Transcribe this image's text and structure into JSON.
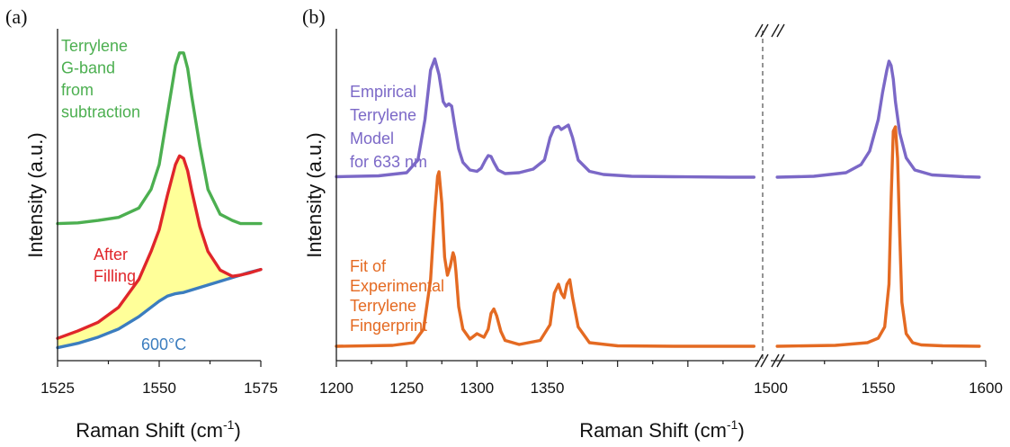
{
  "figure": {
    "panel_a": "(a)",
    "panel_b": "(b)",
    "xlabel_a": "Raman Shift (cm",
    "xlabel_b": "Raman Shift (cm",
    "xlabel_unit_sup": "-1",
    "xlabel_close": ")",
    "ylabel_a": "Intensity (a.u.)",
    "ylabel_b": "Intensity (a.u.)"
  },
  "colors": {
    "green": "#4caf50",
    "red": "#e0262a",
    "blue": "#3b7dbf",
    "yellow_fill": "#ffff99",
    "purple": "#7b68c7",
    "orange": "#e46a22",
    "break_line": "#888888"
  },
  "chart_data": [
    {
      "type": "line",
      "panel": "a",
      "xlim": [
        1525,
        1575
      ],
      "xticks": [
        1525,
        1550,
        1575
      ],
      "xlabel": "Raman Shift (cm-1)",
      "ylabel": "Intensity (a.u.)",
      "annotations": [
        {
          "text": [
            "Terrylene",
            "G-band",
            "from",
            "subtraction"
          ],
          "color": "#4caf50"
        },
        {
          "text": [
            "After",
            "Filling"
          ],
          "color": "#e0262a"
        },
        {
          "text": [
            "600°C"
          ],
          "color": "#3b7dbf"
        }
      ],
      "series": [
        {
          "name": "Terrylene G-band from subtraction",
          "color": "#4caf50",
          "x": [
            1525,
            1530,
            1535,
            1540,
            1545,
            1548,
            1550,
            1552,
            1554,
            1555,
            1556,
            1557,
            1558,
            1560,
            1562,
            1565,
            1568,
            1570,
            1572,
            1575
          ],
          "y": [
            0.205,
            0.206,
            0.21,
            0.215,
            0.23,
            0.26,
            0.3,
            0.38,
            0.46,
            0.48,
            0.48,
            0.455,
            0.41,
            0.33,
            0.26,
            0.22,
            0.21,
            0.205,
            0.205,
            0.205
          ]
        },
        {
          "name": "After Filling",
          "color": "#e0262a",
          "x": [
            1525,
            1530,
            1535,
            1540,
            1545,
            1548,
            1550,
            1552,
            1554,
            1555,
            1556,
            1557,
            1558,
            1560,
            1562,
            1565,
            1568,
            1570,
            1572,
            1575
          ],
          "y": [
            0.02,
            0.032,
            0.046,
            0.07,
            0.115,
            0.16,
            0.195,
            0.25,
            0.3,
            0.314,
            0.31,
            0.29,
            0.258,
            0.2,
            0.16,
            0.13,
            0.12,
            0.122,
            0.125,
            0.131
          ]
        },
        {
          "name": "600°C",
          "color": "#3b7dbf",
          "x": [
            1525,
            1530,
            1535,
            1540,
            1545,
            1548,
            1550,
            1552,
            1554,
            1555,
            1556,
            1557,
            1558,
            1560,
            1562,
            1565,
            1568,
            1570,
            1572,
            1575
          ],
          "y": [
            0.005,
            0.012,
            0.022,
            0.035,
            0.055,
            0.07,
            0.08,
            0.088,
            0.092,
            0.093,
            0.094,
            0.096,
            0.098,
            0.102,
            0.106,
            0.112,
            0.118,
            0.122,
            0.126,
            0.131
          ]
        }
      ]
    },
    {
      "type": "line",
      "panel": "b",
      "broken_x_axis": true,
      "xlim_left": [
        1200,
        1500
      ],
      "xlim_right": [
        1500,
        1600
      ],
      "xticks_left": [
        1200,
        1250,
        1300,
        1350
      ],
      "xticks_right": [
        1500,
        1550,
        1600
      ],
      "xlabel": "Raman Shift (cm-1)",
      "ylabel": "Intensity (a.u.)",
      "annotations": [
        {
          "text": [
            "Empirical",
            "Terrylene",
            "Model",
            "for 633 nm"
          ],
          "color": "#7b68c7"
        },
        {
          "text": [
            "Fit of",
            "Experimental",
            "Terrylene",
            "Fingerprint"
          ],
          "color": "#e46a22"
        }
      ],
      "series": [
        {
          "name": "Empirical Terrylene Model for 633 nm",
          "color": "#7b68c7",
          "x_left": [
            1200,
            1230,
            1250,
            1258,
            1263,
            1267,
            1270,
            1273,
            1276,
            1278,
            1280,
            1282,
            1284,
            1287,
            1290,
            1295,
            1300,
            1303,
            1306,
            1308,
            1310,
            1312,
            1315,
            1320,
            1330,
            1340,
            1348,
            1352,
            1355,
            1358,
            1360,
            1362,
            1365,
            1368,
            1372,
            1380,
            1390,
            1410,
            1440,
            1480,
            1497
          ],
          "y_left": [
            0.003,
            0.005,
            0.012,
            0.04,
            0.13,
            0.24,
            0.265,
            0.23,
            0.17,
            0.16,
            0.165,
            0.16,
            0.12,
            0.065,
            0.035,
            0.018,
            0.015,
            0.022,
            0.04,
            0.05,
            0.048,
            0.035,
            0.018,
            0.01,
            0.012,
            0.02,
            0.04,
            0.09,
            0.112,
            0.115,
            0.108,
            0.112,
            0.118,
            0.09,
            0.04,
            0.015,
            0.008,
            0.004,
            0.003,
            0.002,
            0.002
          ],
          "x_right": [
            1503,
            1520,
            1535,
            1542,
            1546,
            1550,
            1552,
            1554,
            1555,
            1556,
            1557,
            1558,
            1560,
            1563,
            1567,
            1575,
            1590,
            1597
          ],
          "y_right": [
            0.002,
            0.004,
            0.012,
            0.03,
            0.06,
            0.13,
            0.19,
            0.24,
            0.26,
            0.25,
            0.22,
            0.17,
            0.1,
            0.045,
            0.018,
            0.007,
            0.003,
            0.002
          ]
        },
        {
          "name": "Fit of Experimental Terrylene Fingerprint",
          "color": "#e46a22",
          "x_left": [
            1200,
            1240,
            1255,
            1262,
            1267,
            1270,
            1272,
            1273,
            1275,
            1277,
            1279,
            1281,
            1283,
            1284,
            1285,
            1287,
            1290,
            1295,
            1300,
            1305,
            1308,
            1310,
            1312,
            1314,
            1317,
            1320,
            1330,
            1345,
            1352,
            1355,
            1358,
            1360,
            1362,
            1364,
            1366,
            1368,
            1372,
            1380,
            1400,
            1440,
            1497
          ],
          "y_left": [
            0.002,
            0.004,
            0.01,
            0.04,
            0.15,
            0.3,
            0.38,
            0.39,
            0.32,
            0.2,
            0.16,
            0.18,
            0.21,
            0.2,
            0.17,
            0.09,
            0.04,
            0.018,
            0.03,
            0.022,
            0.04,
            0.075,
            0.085,
            0.07,
            0.035,
            0.015,
            0.006,
            0.015,
            0.05,
            0.12,
            0.14,
            0.12,
            0.11,
            0.14,
            0.15,
            0.11,
            0.045,
            0.01,
            0.003,
            0.002,
            0.002
          ],
          "x_right": [
            1503,
            1530,
            1545,
            1550,
            1553,
            1555,
            1556,
            1557,
            1558,
            1559,
            1560,
            1561,
            1563,
            1566,
            1570,
            1580,
            1597
          ],
          "y_right": [
            0.002,
            0.004,
            0.01,
            0.02,
            0.045,
            0.14,
            0.33,
            0.48,
            0.49,
            0.42,
            0.25,
            0.1,
            0.03,
            0.01,
            0.005,
            0.003,
            0.002
          ]
        }
      ]
    }
  ]
}
